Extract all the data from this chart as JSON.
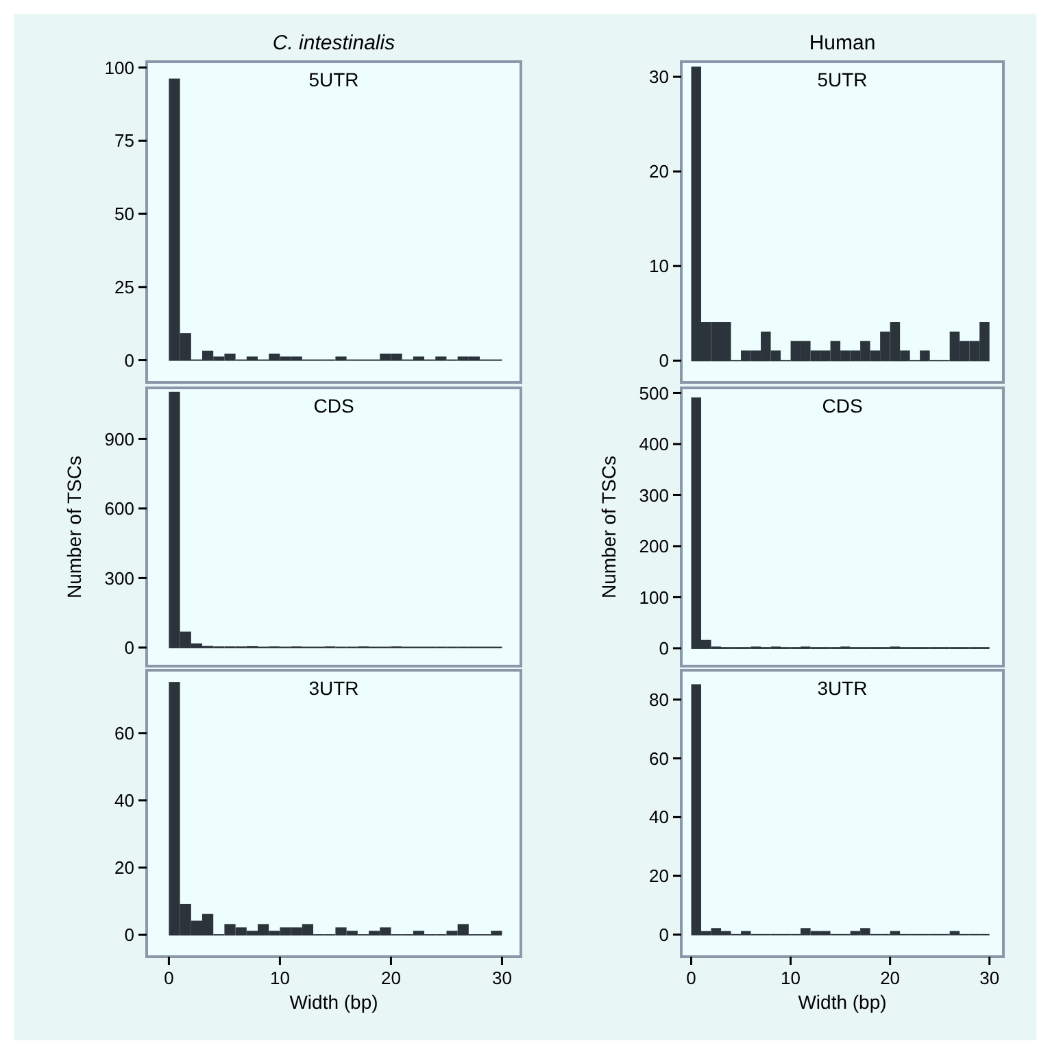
{
  "chart_data": [
    {
      "type": "histogram",
      "title": "C. intestinalis",
      "subtitle": "5UTR",
      "bins": [
        0,
        1,
        2,
        3,
        4,
        5,
        6,
        7,
        8,
        9,
        10,
        11,
        12,
        13,
        14,
        15,
        16,
        17,
        18,
        19,
        20,
        21,
        22,
        23,
        24,
        25,
        26,
        27,
        28,
        29,
        30
      ],
      "values": [
        96,
        9,
        0,
        3,
        1,
        2,
        0,
        1,
        0,
        2,
        1,
        1,
        0,
        0,
        0,
        1,
        0,
        0,
        0,
        2,
        2,
        0,
        1,
        0,
        1,
        0,
        1,
        1,
        0,
        0
      ],
      "color": "#2b333b",
      "xlim": [
        -2,
        31.7
      ],
      "ylim": [
        -7.6,
        102
      ],
      "yticks": [
        0,
        25,
        50,
        75,
        100
      ],
      "grid": false,
      "tick_labels": "y"
    },
    {
      "type": "histogram",
      "title": "Human",
      "subtitle": "5UTR",
      "bins": [
        0,
        1,
        2,
        3,
        4,
        5,
        6,
        7,
        8,
        9,
        10,
        11,
        12,
        13,
        14,
        15,
        16,
        17,
        18,
        19,
        20,
        21,
        22,
        23,
        24,
        25,
        26,
        27,
        28,
        29,
        30
      ],
      "values": [
        31,
        4,
        4,
        4,
        0,
        1,
        1,
        3,
        1,
        0,
        2,
        2,
        1,
        1,
        2,
        1,
        1,
        2,
        1,
        3,
        4,
        1,
        0,
        1,
        0,
        0,
        3,
        2,
        2,
        4
      ],
      "color": "#2b333b",
      "xlim": [
        -1,
        31.4
      ],
      "ylim": [
        -2.3,
        31.6
      ],
      "yticks": [
        0,
        10,
        20,
        30
      ],
      "grid": false,
      "tick_labels": "y"
    },
    {
      "type": "histogram",
      "subtitle": "CDS",
      "ylabel": "Number of TSCs",
      "bins": [
        0,
        1,
        2,
        3,
        4,
        5,
        6,
        7,
        8,
        9,
        10,
        11,
        12,
        13,
        14,
        15,
        16,
        17,
        18,
        19,
        20,
        21,
        22,
        23,
        24,
        25,
        26,
        27,
        28,
        29,
        30
      ],
      "values": [
        1100,
        66,
        15,
        4,
        2,
        2,
        2,
        3,
        1,
        2,
        1,
        2,
        1,
        1,
        2,
        1,
        1,
        2,
        1,
        1,
        2,
        1,
        1,
        1,
        1,
        1,
        1,
        1,
        1,
        1
      ],
      "color": "#2b333b",
      "xlim": [
        -2,
        31.7
      ],
      "ylim": [
        -80,
        1120
      ],
      "yticks": [
        0,
        300,
        600,
        900
      ],
      "grid": false,
      "tick_labels": "y"
    },
    {
      "type": "histogram",
      "subtitle": "CDS",
      "ylabel": "Number of TSCs",
      "bins": [
        0,
        1,
        2,
        3,
        4,
        5,
        6,
        7,
        8,
        9,
        10,
        11,
        12,
        13,
        14,
        15,
        16,
        17,
        18,
        19,
        20,
        21,
        22,
        23,
        24,
        25,
        26,
        27,
        28,
        29,
        30
      ],
      "values": [
        490,
        15,
        2,
        1,
        1,
        1,
        2,
        1,
        2,
        1,
        1,
        2,
        1,
        1,
        1,
        2,
        1,
        1,
        1,
        1,
        2,
        1,
        1,
        1,
        1,
        1,
        1,
        1,
        1,
        1
      ],
      "color": "#2b333b",
      "xlim": [
        -1,
        31.4
      ],
      "ylim": [
        -35,
        510
      ],
      "yticks": [
        0,
        100,
        200,
        300,
        400,
        500
      ],
      "grid": false,
      "tick_labels": "y"
    },
    {
      "type": "histogram",
      "subtitle": "3UTR",
      "xlabel": "Width (bp)",
      "bins": [
        0,
        1,
        2,
        3,
        4,
        5,
        6,
        7,
        8,
        9,
        10,
        11,
        12,
        13,
        14,
        15,
        16,
        17,
        18,
        19,
        20,
        21,
        22,
        23,
        24,
        25,
        26,
        27,
        28,
        29,
        30
      ],
      "values": [
        75,
        9,
        4,
        6,
        0,
        3,
        2,
        1,
        3,
        1,
        2,
        2,
        3,
        0,
        0,
        2,
        1,
        0,
        1,
        2,
        0,
        0,
        1,
        0,
        0,
        1,
        3,
        0,
        0,
        1
      ],
      "color": "#2b333b",
      "xlim": [
        -2,
        31.7
      ],
      "xticks": [
        0,
        10,
        20,
        30
      ],
      "ylim": [
        -6.5,
        78.7
      ],
      "yticks": [
        0,
        20,
        40,
        60
      ],
      "grid": false
    },
    {
      "type": "histogram",
      "subtitle": "3UTR",
      "xlabel": "Width (bp)",
      "bins": [
        0,
        1,
        2,
        3,
        4,
        5,
        6,
        7,
        8,
        9,
        10,
        11,
        12,
        13,
        14,
        15,
        16,
        17,
        18,
        19,
        20,
        21,
        22,
        23,
        24,
        25,
        26,
        27,
        28,
        29,
        30
      ],
      "values": [
        85,
        1,
        2,
        1,
        0,
        1,
        0,
        0,
        0,
        0,
        0,
        2,
        1,
        1,
        0,
        0,
        1,
        2,
        0,
        0,
        1,
        0,
        0,
        0,
        0,
        0,
        1,
        0,
        0,
        0
      ],
      "color": "#2b333b",
      "xlim": [
        -1,
        31.4
      ],
      "xticks": [
        0,
        10,
        20,
        30
      ],
      "ylim": [
        -7.5,
        90
      ],
      "yticks": [
        0,
        20,
        40,
        60,
        80
      ],
      "grid": false
    }
  ]
}
